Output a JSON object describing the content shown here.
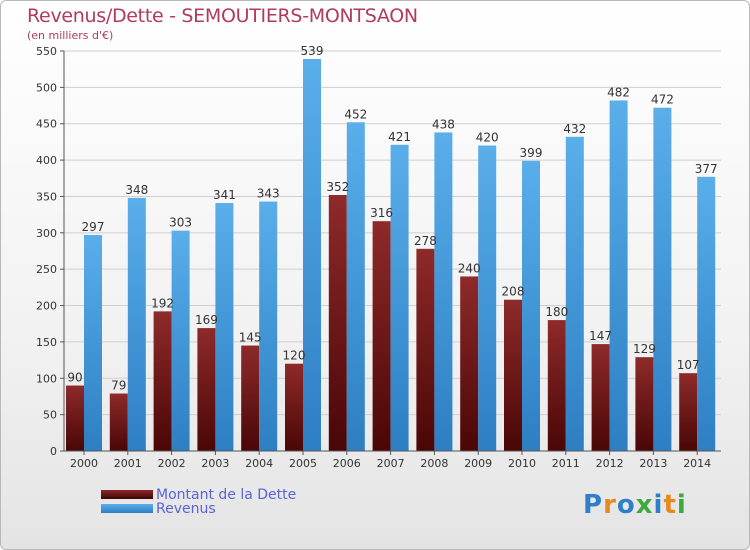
{
  "chart_data": {
    "type": "bar",
    "title": "Revenus/Dette - SEMOUTIERS-MONTSAON",
    "subtitle": "(en milliers d'€)",
    "categories": [
      "2000",
      "2001",
      "2002",
      "2003",
      "2004",
      "2005",
      "2006",
      "2007",
      "2008",
      "2009",
      "2010",
      "2011",
      "2012",
      "2013",
      "2014"
    ],
    "series": [
      {
        "name": "Montant de la Dette",
        "color": "#7a1c1c",
        "values": [
          90,
          79,
          192,
          169,
          145,
          120,
          352,
          316,
          278,
          240,
          208,
          180,
          147,
          129,
          107
        ]
      },
      {
        "name": "Revenus",
        "color": "#3d94db",
        "values": [
          297,
          348,
          303,
          341,
          343,
          539,
          452,
          421,
          438,
          420,
          399,
          432,
          482,
          472,
          377
        ]
      }
    ],
    "ylim": [
      0,
      550
    ],
    "yticks": [
      0,
      50,
      100,
      150,
      200,
      250,
      300,
      350,
      400,
      450,
      500,
      550
    ],
    "grid": true,
    "legend_position": "bottom-left"
  },
  "logo": {
    "text": "Proxiti",
    "letters": [
      "P",
      "r",
      "o",
      "x",
      "i",
      "t",
      "i"
    ],
    "colors": [
      "#2e7fc7",
      "#e8891d",
      "#2e7fc7",
      "#3fa83f",
      "#2e7fc7",
      "#e8891d",
      "#3fa83f"
    ]
  }
}
